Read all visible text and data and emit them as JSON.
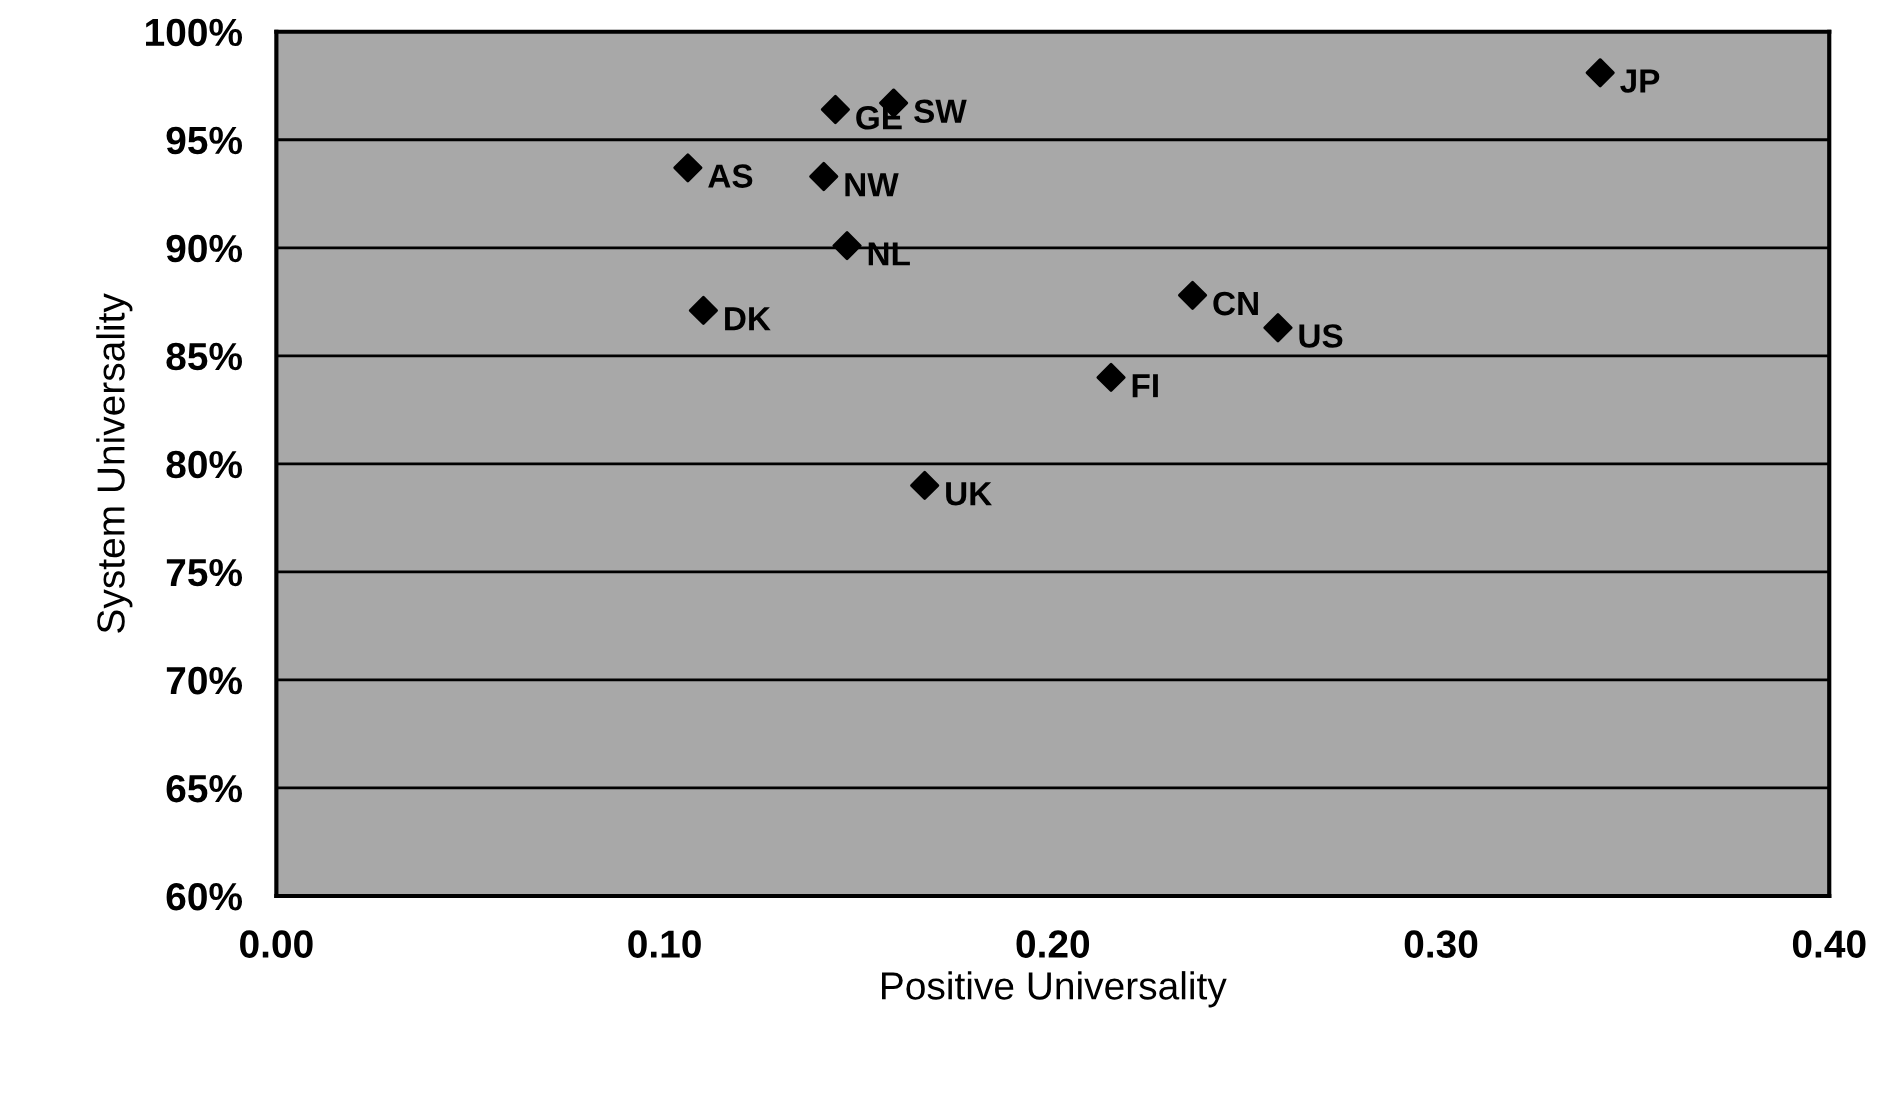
{
  "chart_data": {
    "type": "scatter",
    "xlabel": "Positive Universality",
    "ylabel": "System Universality",
    "x": [
      0.144,
      0.159,
      0.106,
      0.141,
      0.147,
      0.11,
      0.341,
      0.236,
      0.258,
      0.215,
      0.167
    ],
    "series": [
      {
        "color": "#000000",
        "values": [
          96.4,
          96.7,
          93.7,
          93.3,
          90.1,
          87.1,
          98.1,
          87.8,
          86.3,
          84.0,
          79.0
        ]
      }
    ],
    "annotations": [
      {
        "text": "GE",
        "x": 0.144,
        "y": 96.4
      },
      {
        "text": "SW",
        "x": 0.159,
        "y": 96.7
      },
      {
        "text": "AS",
        "x": 0.106,
        "y": 93.7
      },
      {
        "text": "NW",
        "x": 0.141,
        "y": 93.3
      },
      {
        "text": "NL",
        "x": 0.147,
        "y": 90.1
      },
      {
        "text": "DK",
        "x": 0.11,
        "y": 87.1
      },
      {
        "text": "JP",
        "x": 0.341,
        "y": 98.1
      },
      {
        "text": "CN",
        "x": 0.236,
        "y": 87.8
      },
      {
        "text": "US",
        "x": 0.258,
        "y": 86.3
      },
      {
        "text": "FI",
        "x": 0.215,
        "y": 84.0
      },
      {
        "text": "UK",
        "x": 0.167,
        "y": 79.0
      }
    ],
    "xlim": [
      0.0,
      0.4
    ],
    "xticks": [
      {
        "value": 0.0,
        "label": "0.00"
      },
      {
        "value": 0.1,
        "label": "0.10"
      },
      {
        "value": 0.2,
        "label": "0.20"
      },
      {
        "value": 0.3,
        "label": "0.30"
      },
      {
        "value": 0.4,
        "label": "0.40"
      }
    ],
    "ylim": [
      60,
      100
    ],
    "yticks": [
      {
        "value": 60,
        "label": "60%"
      },
      {
        "value": 65,
        "label": "65%"
      },
      {
        "value": 70,
        "label": "70%"
      },
      {
        "value": 75,
        "label": "75%"
      },
      {
        "value": 80,
        "label": "80%"
      },
      {
        "value": 85,
        "label": "85%"
      },
      {
        "value": 90,
        "label": "90%"
      },
      {
        "value": 95,
        "label": "95%"
      },
      {
        "value": 100,
        "label": "100%"
      }
    ],
    "grid": "y",
    "marker": "diamond",
    "legend": false
  }
}
